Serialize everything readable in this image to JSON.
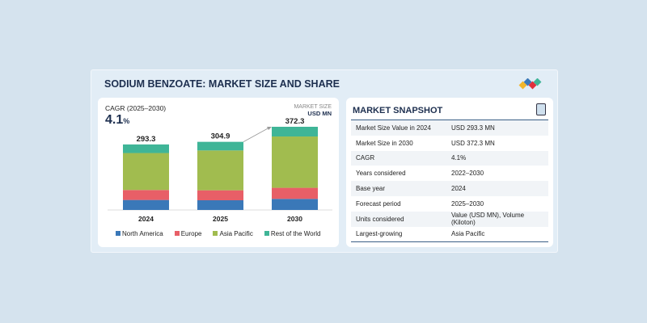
{
  "title": "SODIUM BENZOATE: MARKET SIZE AND SHARE",
  "colors": {
    "north_america": "#3a78b8",
    "europe": "#e85f67",
    "asia_pacific": "#a1bc4f",
    "rest_of_world": "#3fb597",
    "title": "#1d2f4f"
  },
  "cagr": {
    "label": "CAGR (2025–2030)",
    "value": "4.1",
    "unit": "%"
  },
  "market_size": {
    "label": "MARKET SIZE",
    "unit": "USD MN"
  },
  "chart_data": {
    "type": "bar",
    "stacked": true,
    "categories": [
      "2024",
      "2025",
      "2030"
    ],
    "totals": [
      "293.3",
      "304.9",
      "372.3"
    ],
    "series": [
      {
        "name": "North America",
        "values": [
          44.7,
          43.4,
          49.5
        ]
      },
      {
        "name": "Europe",
        "values": [
          44.6,
          44.6,
          49.6
        ]
      },
      {
        "name": "Asia Pacific",
        "values": [
          165.4,
          178.3,
          229.7
        ]
      },
      {
        "name": "Rest of the World",
        "values": [
          38.6,
          38.6,
          43.5
        ]
      }
    ],
    "legend": "bottom",
    "grid": false,
    "ylim": [
      0,
      372.3
    ]
  },
  "snapshot": {
    "title": "MARKET SNAPSHOT",
    "rows": [
      {
        "k": "Market Size Value in 2024",
        "v": "USD 293.3 MN"
      },
      {
        "k": "Market Size in 2030",
        "v": "USD 372.3 MN"
      },
      {
        "k": "CAGR",
        "v": "4.1%"
      },
      {
        "k": "Years considered",
        "v": "2022–2030"
      },
      {
        "k": "Base year",
        "v": "2024"
      },
      {
        "k": "Forecast period",
        "v": "2025–2030"
      },
      {
        "k": "Units considered",
        "v": "Value (USD MN), Volume (Kiloton)"
      },
      {
        "k": "Largest-growing",
        "v": "Asia Pacific"
      }
    ]
  }
}
